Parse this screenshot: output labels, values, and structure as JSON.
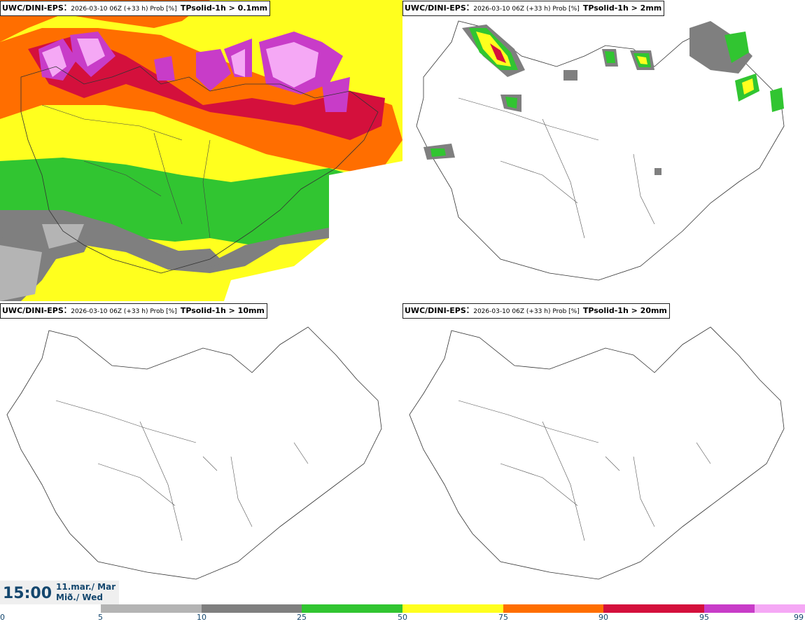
{
  "panels": [
    {
      "model": "UWC/DINI-EPS",
      "meta": "2026-03-10 06Z (+33 h) Prob [%]",
      "param": "TPsolid-1h > 0.1mm"
    },
    {
      "model": "UWC/DINI-EPS",
      "meta": "2026-03-10 06Z (+33 h) Prob [%]",
      "param": "TPsolid-1h > 2mm"
    },
    {
      "model": "UWC/DINI-EPS",
      "meta": "2026-03-10 06Z (+33 h) Prob [%]",
      "param": "TPsolid-1h > 10mm"
    },
    {
      "model": "UWC/DINI-EPS",
      "meta": "2026-03-10 06Z (+33 h) Prob [%]",
      "param": "TPsolid-1h > 20mm"
    }
  ],
  "time": {
    "clock": "15:00",
    "date_line": "11.mar./ Mar",
    "day_line": "Mið./ Wed"
  },
  "legend": {
    "ticks": [
      "0",
      "5",
      "10",
      "25",
      "50",
      "75",
      "90",
      "95",
      "99"
    ],
    "colors": {
      "c5": "#b4b4b4",
      "c10": "#7f7f7f",
      "c25": "#31c531",
      "c50": "#ffff1e",
      "c75": "#ff6e00",
      "c90": "#d4103c",
      "c95": "#c83cc8",
      "c99": "#f5a8f5"
    }
  }
}
